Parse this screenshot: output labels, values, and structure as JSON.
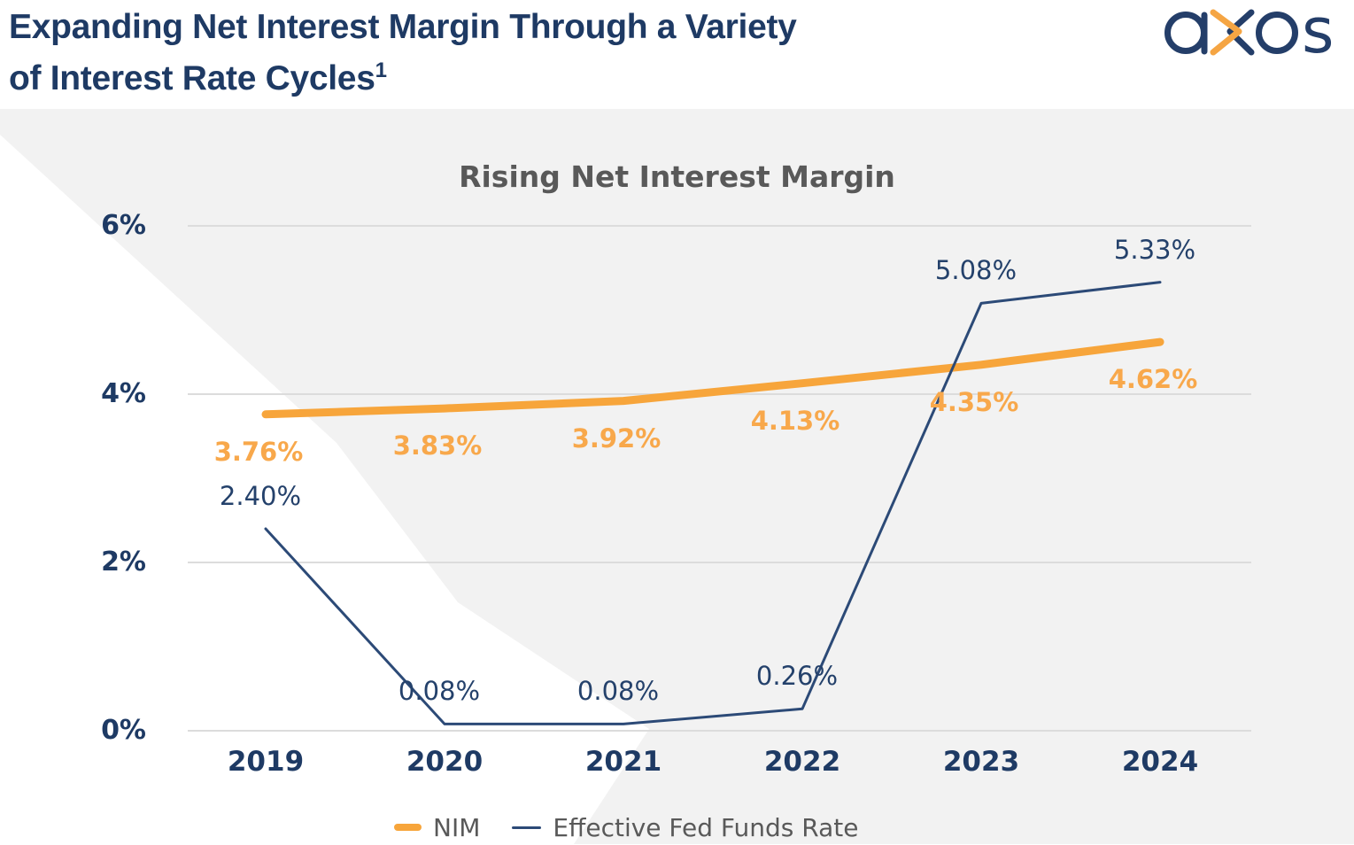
{
  "header": {
    "title_line1": "Expanding Net Interest Margin Through a Variety",
    "title_line2": "of Interest Rate Cycles",
    "footnote_marker": "1"
  },
  "logo": {
    "name": "axos",
    "navy": "#243E69",
    "orange": "#F5A543"
  },
  "colors": {
    "header_navy": "#1E3A64",
    "axis_navy": "#1E3A64",
    "banner_gray": "#F2F2F2",
    "gridline_gray": "#DCDCDC",
    "title_gray": "#595959",
    "nim_orange": "#F7A53B",
    "fed_navy": "#2C4A77"
  },
  "chart_data": {
    "type": "line",
    "title": "Rising Net Interest Margin",
    "categories": [
      "2019",
      "2020",
      "2021",
      "2022",
      "2023",
      "2024"
    ],
    "series": [
      {
        "name": "NIM",
        "color": "#F7A53B",
        "label_color": "#F8A84B",
        "values": [
          3.76,
          3.83,
          3.92,
          4.13,
          4.35,
          4.62
        ],
        "labels": [
          "3.76%",
          "3.83%",
          "3.92%",
          "4.13%",
          "4.35%",
          "4.62%"
        ]
      },
      {
        "name": "Effective Fed Funds Rate",
        "color": "#2C4A77",
        "label_color": "#24416B",
        "values": [
          2.4,
          0.08,
          0.08,
          0.26,
          5.08,
          5.33
        ],
        "labels": [
          "2.40%",
          "0.08%",
          "0.08%",
          "0.26%",
          "5.08%",
          "5.33%"
        ]
      }
    ],
    "xlabel": "",
    "ylabel": "",
    "ylim": [
      0,
      6
    ],
    "yticks": [
      {
        "value": 6,
        "label": "6%"
      },
      {
        "value": 4,
        "label": "4%"
      },
      {
        "value": 2,
        "label": "2%"
      },
      {
        "value": 0,
        "label": "0%"
      }
    ],
    "grid": "horizontal",
    "legend_position": "bottom"
  }
}
